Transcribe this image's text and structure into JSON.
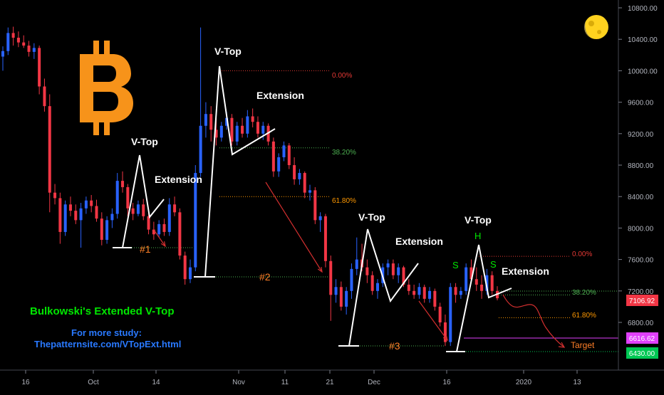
{
  "chart_data": {
    "type": "candlestick",
    "instrument_logo": "bitcoin-logo",
    "y_axis": {
      "position": "right",
      "range": [
        6260,
        10900
      ],
      "ticks": [
        "10800.00",
        "10400.00",
        "10000.00",
        "9600.00",
        "9200.00",
        "8800.00",
        "8400.00",
        "8000.00",
        "7600.00",
        "7200.00",
        "6800.00"
      ]
    },
    "x_axis": {
      "ticks": [
        "16",
        "Oct",
        "14",
        "Nov",
        "11",
        "21",
        "Dec",
        "16",
        "2020",
        "13"
      ]
    },
    "price_labels": [
      {
        "value": "7106.92",
        "color": "#f23645"
      },
      {
        "value": "6616.62",
        "color": "#e040fb"
      },
      {
        "value": "6430.00",
        "color": "#00c853"
      }
    ],
    "candles": [
      {
        "o": 10180,
        "h": 10310,
        "l": 10000,
        "c": 10250
      },
      {
        "o": 10250,
        "h": 10550,
        "l": 10200,
        "c": 10480
      },
      {
        "o": 10480,
        "h": 10560,
        "l": 10320,
        "c": 10420
      },
      {
        "o": 10420,
        "h": 10500,
        "l": 10300,
        "c": 10360
      },
      {
        "o": 10360,
        "h": 10450,
        "l": 10290,
        "c": 10320
      },
      {
        "o": 10320,
        "h": 10380,
        "l": 10180,
        "c": 10240
      },
      {
        "o": 10240,
        "h": 10350,
        "l": 10150,
        "c": 10290
      },
      {
        "o": 10290,
        "h": 10320,
        "l": 9700,
        "c": 9800
      },
      {
        "o": 9800,
        "h": 9900,
        "l": 9480,
        "c": 9550
      },
      {
        "o": 9550,
        "h": 9700,
        "l": 8200,
        "c": 8450
      },
      {
        "o": 8450,
        "h": 8560,
        "l": 8300,
        "c": 8380
      },
      {
        "o": 8380,
        "h": 8450,
        "l": 7800,
        "c": 7950
      },
      {
        "o": 7950,
        "h": 8350,
        "l": 7900,
        "c": 8300
      },
      {
        "o": 8300,
        "h": 8400,
        "l": 8150,
        "c": 8220
      },
      {
        "o": 8220,
        "h": 8300,
        "l": 8050,
        "c": 8100
      },
      {
        "o": 8100,
        "h": 8320,
        "l": 7750,
        "c": 8250
      },
      {
        "o": 8250,
        "h": 8400,
        "l": 8180,
        "c": 8350
      },
      {
        "o": 8350,
        "h": 8420,
        "l": 8200,
        "c": 8280
      },
      {
        "o": 8280,
        "h": 8360,
        "l": 8080,
        "c": 8120
      },
      {
        "o": 8120,
        "h": 8200,
        "l": 7780,
        "c": 7850
      },
      {
        "o": 7850,
        "h": 8150,
        "l": 7800,
        "c": 8100
      },
      {
        "o": 8100,
        "h": 8250,
        "l": 8000,
        "c": 8180
      },
      {
        "o": 8180,
        "h": 8700,
        "l": 8120,
        "c": 8600
      },
      {
        "o": 8600,
        "h": 8720,
        "l": 8450,
        "c": 8520
      },
      {
        "o": 8520,
        "h": 8560,
        "l": 8150,
        "c": 8250
      },
      {
        "o": 8250,
        "h": 8320,
        "l": 8100,
        "c": 8180
      },
      {
        "o": 8180,
        "h": 8350,
        "l": 8150,
        "c": 8300
      },
      {
        "o": 8300,
        "h": 8370,
        "l": 8100,
        "c": 8150
      },
      {
        "o": 8150,
        "h": 8200,
        "l": 7920,
        "c": 7980
      },
      {
        "o": 7980,
        "h": 8080,
        "l": 7850,
        "c": 7920
      },
      {
        "o": 7920,
        "h": 8100,
        "l": 7880,
        "c": 8050
      },
      {
        "o": 8050,
        "h": 8120,
        "l": 7900,
        "c": 7950
      },
      {
        "o": 7950,
        "h": 8380,
        "l": 7900,
        "c": 8300
      },
      {
        "o": 8300,
        "h": 8400,
        "l": 8150,
        "c": 8200
      },
      {
        "o": 8200,
        "h": 8250,
        "l": 7600,
        "c": 7650
      },
      {
        "o": 7650,
        "h": 7700,
        "l": 7280,
        "c": 7350
      },
      {
        "o": 7350,
        "h": 7600,
        "l": 7300,
        "c": 7500
      },
      {
        "o": 7500,
        "h": 8800,
        "l": 7450,
        "c": 8700
      },
      {
        "o": 8700,
        "h": 10550,
        "l": 8650,
        "c": 9300
      },
      {
        "o": 9300,
        "h": 9600,
        "l": 9150,
        "c": 9450
      },
      {
        "o": 9450,
        "h": 9550,
        "l": 9100,
        "c": 9250
      },
      {
        "o": 9250,
        "h": 9400,
        "l": 9050,
        "c": 9150
      },
      {
        "o": 9150,
        "h": 9350,
        "l": 9100,
        "c": 9300
      },
      {
        "o": 9300,
        "h": 9480,
        "l": 9250,
        "c": 9400
      },
      {
        "o": 9400,
        "h": 9450,
        "l": 9050,
        "c": 9100
      },
      {
        "o": 9100,
        "h": 9350,
        "l": 9050,
        "c": 9300
      },
      {
        "o": 9300,
        "h": 9400,
        "l": 9150,
        "c": 9200
      },
      {
        "o": 9200,
        "h": 9500,
        "l": 9150,
        "c": 9420
      },
      {
        "o": 9420,
        "h": 9520,
        "l": 9280,
        "c": 9350
      },
      {
        "o": 9350,
        "h": 9420,
        "l": 9150,
        "c": 9200
      },
      {
        "o": 9200,
        "h": 9350,
        "l": 9120,
        "c": 9300
      },
      {
        "o": 9300,
        "h": 9330,
        "l": 9050,
        "c": 9100
      },
      {
        "o": 9100,
        "h": 9150,
        "l": 8650,
        "c": 8720
      },
      {
        "o": 8720,
        "h": 8950,
        "l": 8650,
        "c": 8900
      },
      {
        "o": 8900,
        "h": 9100,
        "l": 8850,
        "c": 9050
      },
      {
        "o": 9050,
        "h": 9080,
        "l": 8750,
        "c": 8800
      },
      {
        "o": 8800,
        "h": 8900,
        "l": 8550,
        "c": 8620
      },
      {
        "o": 8620,
        "h": 8750,
        "l": 8550,
        "c": 8700
      },
      {
        "o": 8700,
        "h": 8720,
        "l": 8380,
        "c": 8450
      },
      {
        "o": 8450,
        "h": 8550,
        "l": 8350,
        "c": 8480
      },
      {
        "o": 8480,
        "h": 8520,
        "l": 8050,
        "c": 8100
      },
      {
        "o": 8100,
        "h": 8200,
        "l": 7950,
        "c": 8150
      },
      {
        "o": 8150,
        "h": 8180,
        "l": 7500,
        "c": 7580
      },
      {
        "o": 7580,
        "h": 7650,
        "l": 6820,
        "c": 7150
      },
      {
        "o": 7150,
        "h": 7350,
        "l": 7050,
        "c": 7250
      },
      {
        "o": 7250,
        "h": 7320,
        "l": 6950,
        "c": 7000
      },
      {
        "o": 7000,
        "h": 7250,
        "l": 6900,
        "c": 7200
      },
      {
        "o": 7200,
        "h": 7550,
        "l": 7100,
        "c": 7480
      },
      {
        "o": 7480,
        "h": 7880,
        "l": 7400,
        "c": 7600
      },
      {
        "o": 7600,
        "h": 7800,
        "l": 7450,
        "c": 7500
      },
      {
        "o": 7500,
        "h": 7600,
        "l": 7300,
        "c": 7400
      },
      {
        "o": 7400,
        "h": 7450,
        "l": 7150,
        "c": 7200
      },
      {
        "o": 7200,
        "h": 7350,
        "l": 7100,
        "c": 7300
      },
      {
        "o": 7300,
        "h": 7550,
        "l": 7250,
        "c": 7500
      },
      {
        "o": 7500,
        "h": 7600,
        "l": 7400,
        "c": 7550
      },
      {
        "o": 7550,
        "h": 7600,
        "l": 7350,
        "c": 7400
      },
      {
        "o": 7400,
        "h": 7550,
        "l": 7300,
        "c": 7500
      },
      {
        "o": 7500,
        "h": 7520,
        "l": 7250,
        "c": 7280
      },
      {
        "o": 7280,
        "h": 7350,
        "l": 7150,
        "c": 7200
      },
      {
        "o": 7200,
        "h": 7280,
        "l": 7100,
        "c": 7150
      },
      {
        "o": 7150,
        "h": 7300,
        "l": 7100,
        "c": 7250
      },
      {
        "o": 7250,
        "h": 7280,
        "l": 7050,
        "c": 7100
      },
      {
        "o": 7100,
        "h": 7250,
        "l": 7050,
        "c": 7200
      },
      {
        "o": 7200,
        "h": 7230,
        "l": 6950,
        "c": 7000
      },
      {
        "o": 7000,
        "h": 7050,
        "l": 6750,
        "c": 6800
      },
      {
        "o": 6800,
        "h": 6900,
        "l": 6500,
        "c": 6550
      },
      {
        "o": 6550,
        "h": 7300,
        "l": 6500,
        "c": 7250
      },
      {
        "o": 7250,
        "h": 7300,
        "l": 7050,
        "c": 7150
      },
      {
        "o": 7150,
        "h": 7250,
        "l": 7100,
        "c": 7200
      },
      {
        "o": 7200,
        "h": 7550,
        "l": 7150,
        "c": 7500
      },
      {
        "o": 7500,
        "h": 7600,
        "l": 7300,
        "c": 7350
      },
      {
        "o": 7350,
        "h": 7500,
        "l": 7200,
        "c": 7280
      },
      {
        "o": 7280,
        "h": 7400,
        "l": 7100,
        "c": 7200
      },
      {
        "o": 7200,
        "h": 7480,
        "l": 7150,
        "c": 7400
      },
      {
        "o": 7400,
        "h": 7450,
        "l": 7150,
        "c": 7200
      },
      {
        "o": 7200,
        "h": 7260,
        "l": 7080,
        "c": 7107
      }
    ],
    "patterns": [
      {
        "peak_label": "V-Top",
        "extension_label": "Extension",
        "number_label": "#1"
      },
      {
        "peak_label": "V-Top",
        "extension_label": "Extension",
        "number_label": "#2"
      },
      {
        "peak_label": "V-Top",
        "extension_label": "Extension",
        "number_label": "#3"
      },
      {
        "peak_label": "V-Top",
        "extension_label": "Extension",
        "hs_labels": [
          "S",
          "H",
          "S"
        ]
      }
    ],
    "fib_levels": [
      {
        "label": "0.00%",
        "color": "#e53935"
      },
      {
        "label": "38.20%",
        "color": "#4caf50"
      },
      {
        "label": "61.80%",
        "color": "#ff9800"
      }
    ],
    "target_label": "Target",
    "headline": "Bulkowski's Extended V-Top",
    "study_line": "For more study:",
    "study_url": "Thepatternsite.com/VTopExt.html",
    "colors": {
      "background": "#000000",
      "up": "#2962ff",
      "down": "#f23645",
      "pattern_lines": "#ffffff",
      "headline": "#00e600",
      "study": "#2979ff",
      "bitcoin": "#f7931a",
      "hs_labels": "#00e600"
    }
  }
}
